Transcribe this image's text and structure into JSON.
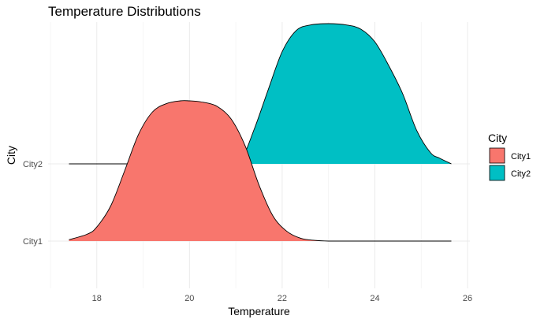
{
  "chart_data": {
    "type": "ridgeline",
    "title": "Temperature Distributions",
    "xlabel": "Temperature",
    "ylabel": "City",
    "xlim": [
      16.95,
      26.05
    ],
    "x_ticks": [
      18,
      20,
      22,
      24,
      26
    ],
    "y_ticks": [
      "City1",
      "City2"
    ],
    "grid": true,
    "legend_position": "right",
    "legend_title": "City",
    "series": [
      {
        "name": "City1",
        "color": "#F8766D",
        "x": [
          17.4,
          17.8,
          18.0,
          18.3,
          18.6,
          18.9,
          19.2,
          19.5,
          19.8,
          20.0,
          20.3,
          20.6,
          20.9,
          21.2,
          21.5,
          21.8,
          22.1,
          22.4,
          22.7,
          23.0,
          23.5,
          24.0,
          24.5,
          25.0,
          25.65
        ],
        "density": [
          0.01,
          0.05,
          0.1,
          0.25,
          0.5,
          0.76,
          0.92,
          0.98,
          1.0,
          1.0,
          0.99,
          0.96,
          0.87,
          0.68,
          0.4,
          0.18,
          0.07,
          0.02,
          0.005,
          0.0,
          0.0,
          0.0,
          0.0,
          0.0,
          0.0
        ]
      },
      {
        "name": "City2",
        "color": "#00BFC4",
        "x": [
          17.4,
          18.0,
          19.0,
          20.0,
          20.8,
          21.1,
          21.4,
          21.7,
          22.0,
          22.3,
          22.6,
          23.0,
          23.4,
          23.7,
          24.0,
          24.3,
          24.6,
          24.9,
          25.2,
          25.4,
          25.65
        ],
        "density": [
          0.0,
          0.0,
          0.0,
          0.0,
          0.0,
          0.02,
          0.25,
          0.53,
          0.8,
          0.95,
          0.99,
          1.0,
          0.99,
          0.96,
          0.87,
          0.7,
          0.5,
          0.24,
          0.08,
          0.04,
          0.0
        ]
      }
    ]
  }
}
